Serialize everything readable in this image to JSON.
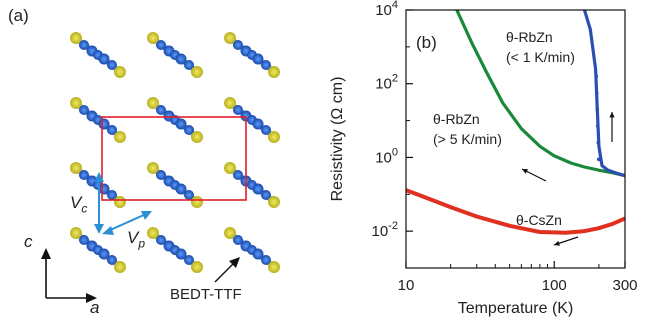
{
  "panel_a": {
    "label": "(a)",
    "vc_main": "V",
    "vc_sub": "c",
    "vp_main": "V",
    "vp_sub": "p",
    "axis_c": "c",
    "axis_a": "a",
    "molecule_label": "BEDT-TTF",
    "colors": {
      "unit_cell": "#e0202a",
      "arrow": "#2c8fd6",
      "sulfur": "#d8d020",
      "carbon": "#1f5fbf"
    }
  },
  "chart_data": {
    "type": "line",
    "panel_label": "(b)",
    "xlabel": "Temperature (K)",
    "ylabel": "Resistivity (Ω cm)",
    "x_scale": "log",
    "y_scale": "log",
    "xlim": [
      10,
      300
    ],
    "ylim": [
      0.001,
      10000
    ],
    "x_ticks": [
      {
        "value": 10,
        "label": "10"
      },
      {
        "value": 100,
        "label": "100"
      },
      {
        "value": 300,
        "label": "300"
      }
    ],
    "y_ticks": [
      {
        "value": 0.01,
        "label_base": "10",
        "label_exp": "-2"
      },
      {
        "value": 1,
        "label_base": "10",
        "label_exp": "0"
      },
      {
        "value": 100,
        "label_base": "10",
        "label_exp": "2"
      },
      {
        "value": 10000,
        "label_base": "10",
        "label_exp": "4"
      }
    ],
    "grid": false,
    "series": [
      {
        "label_line1": "θ-RbZn",
        "label_line2": "(> 5 K/min)",
        "color": "#1a8a3a",
        "x": [
          22,
          28,
          35,
          45,
          60,
          80,
          100,
          130,
          160,
          200,
          250,
          300
        ],
        "y": [
          10000,
          1200,
          200,
          30,
          6,
          2,
          1.1,
          0.7,
          0.55,
          0.45,
          0.38,
          0.32
        ]
      },
      {
        "label_line1": "θ-RbZn",
        "label_line2": "(< 1 K/min)",
        "color": "#2a4fb0",
        "x": [
          160,
          175,
          190,
          195,
          200,
          210,
          230,
          260,
          300
        ],
        "y": [
          10000,
          3000,
          250,
          20,
          2,
          0.6,
          0.45,
          0.38,
          0.32
        ]
      },
      {
        "label_line1": "θ-CsZn",
        "label_line2": "",
        "color": "#e03020",
        "x": [
          10,
          15,
          20,
          30,
          50,
          80,
          120,
          160,
          200,
          250,
          300
        ],
        "y": [
          0.13,
          0.07,
          0.045,
          0.025,
          0.014,
          0.0095,
          0.009,
          0.01,
          0.012,
          0.016,
          0.022
        ]
      }
    ]
  }
}
